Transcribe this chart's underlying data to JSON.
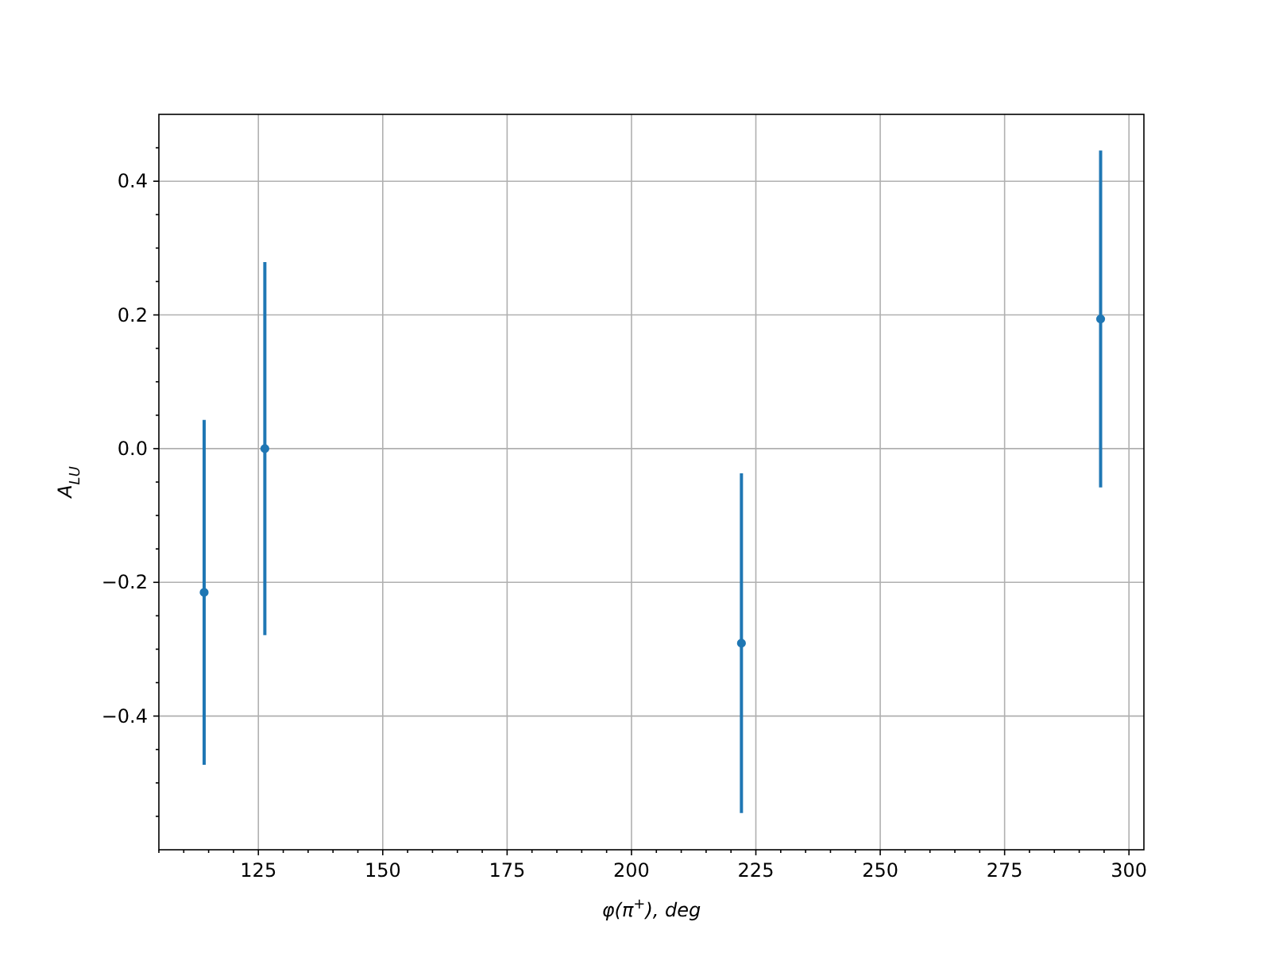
{
  "chart_data": {
    "type": "scatter",
    "xlabel": "φ(π$^{+}$), deg",
    "ylabel": "A$_{LU}$",
    "x": [
      114.1,
      126.3,
      222.1,
      294.3
    ],
    "series": [
      {
        "color": "#1f77b4",
        "values": [
          -0.215,
          0.0,
          -0.291,
          0.194
        ],
        "errors": [
          0.258,
          0.279,
          0.254,
          0.252
        ]
      }
    ],
    "xlim": [
      105,
      303
    ],
    "ylim": [
      -0.6,
      0.5
    ],
    "xticks": [
      {
        "value": 105,
        "label": null
      },
      {
        "value": 110,
        "label": null
      },
      {
        "value": 115,
        "label": null
      },
      {
        "value": 120,
        "label": null
      },
      125,
      {
        "value": 130,
        "label": null
      },
      {
        "value": 135,
        "label": null
      },
      {
        "value": 140,
        "label": null
      },
      {
        "value": 145,
        "label": null
      },
      150,
      {
        "value": 155,
        "label": null
      },
      {
        "value": 160,
        "label": null
      },
      {
        "value": 165,
        "label": null
      },
      {
        "value": 170,
        "label": null
      },
      175,
      {
        "value": 180,
        "label": null
      },
      {
        "value": 185,
        "label": null
      },
      {
        "value": 190,
        "label": null
      },
      {
        "value": 195,
        "label": null
      },
      200,
      {
        "value": 205,
        "label": null
      },
      {
        "value": 210,
        "label": null
      },
      {
        "value": 215,
        "label": null
      },
      {
        "value": 220,
        "label": null
      },
      225,
      {
        "value": 230,
        "label": null
      },
      {
        "value": 235,
        "label": null
      },
      {
        "value": 240,
        "label": null
      },
      {
        "value": 245,
        "label": null
      },
      250,
      {
        "value": 255,
        "label": null
      },
      {
        "value": 260,
        "label": null
      },
      {
        "value": 265,
        "label": null
      },
      {
        "value": 270,
        "label": null
      },
      275,
      {
        "value": 280,
        "label": null
      },
      {
        "value": 285,
        "label": null
      },
      {
        "value": 290,
        "label": null
      },
      {
        "value": 295,
        "label": null
      },
      300
    ],
    "yticks": [
      {
        "value": -0.55,
        "label": null
      },
      {
        "value": -0.5,
        "label": null
      },
      {
        "value": -0.45,
        "label": null
      },
      {
        "value": -0.4,
        "label": "−0.4"
      },
      {
        "value": -0.35,
        "label": null
      },
      {
        "value": -0.3,
        "label": null
      },
      {
        "value": -0.25,
        "label": null
      },
      {
        "value": -0.2,
        "label": "−0.2"
      },
      {
        "value": -0.15,
        "label": null
      },
      {
        "value": -0.1,
        "label": null
      },
      {
        "value": -0.05,
        "label": null
      },
      {
        "value": 0,
        "label": "0.0"
      },
      {
        "value": 0.05,
        "label": null
      },
      {
        "value": 0.1,
        "label": null
      },
      {
        "value": 0.15,
        "label": null
      },
      {
        "value": 0.2,
        "label": "0.2"
      },
      {
        "value": 0.25,
        "label": null
      },
      {
        "value": 0.3,
        "label": null
      },
      {
        "value": 0.35,
        "label": null
      },
      {
        "value": 0.4,
        "label": "0.4"
      },
      {
        "value": 0.45,
        "label": null
      }
    ],
    "grid": true,
    "marker": "circle"
  }
}
